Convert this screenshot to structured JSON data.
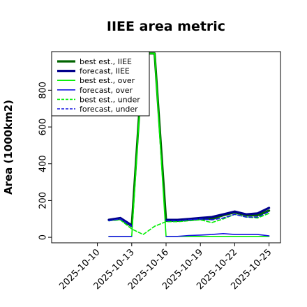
{
  "chart_data": {
    "type": "line",
    "title": "IIEE area metric",
    "xlabel": "",
    "ylabel": "Area (1000km2)",
    "x": [
      "2025-10-11",
      "2025-10-12",
      "2025-10-13",
      "2025-10-14",
      "2025-10-15",
      "2025-10-16",
      "2025-10-17",
      "2025-10-18",
      "2025-10-19",
      "2025-10-20",
      "2025-10-21",
      "2025-10-22",
      "2025-10-23",
      "2025-10-24",
      "2025-10-25"
    ],
    "x_tick_labels": [
      "2025-10-10",
      "2025-10-13",
      "2025-10-16",
      "2025-10-19",
      "2025-10-22",
      "2025-10-25"
    ],
    "x_tick_values": [
      "2025-10-10",
      "2025-10-13",
      "2025-10-16",
      "2025-10-19",
      "2025-10-22",
      "2025-10-25"
    ],
    "highlighted_tick": "2025-10-16",
    "highlight_color": "#2e8b57",
    "xlim": [
      "2025-10-06",
      "2025-10-26"
    ],
    "ylim": [
      -30,
      1010
    ],
    "y_ticks": [
      0,
      200,
      400,
      600,
      800
    ],
    "grid": false,
    "legend_position": "top-left",
    "series": [
      {
        "name": "best est., IIEE",
        "color": "#006400",
        "width": 3.2,
        "dash": "solid",
        "values": [
          95,
          100,
          60,
          1000,
          1000,
          90,
          90,
          95,
          100,
          100,
          120,
          135,
          120,
          120,
          145
        ]
      },
      {
        "name": "forecast, IIEE",
        "color": "#00008b",
        "width": 3.2,
        "dash": "solid",
        "values": [
          95,
          105,
          65,
          null,
          null,
          95,
          95,
          100,
          105,
          110,
          125,
          140,
          125,
          130,
          160
        ]
      },
      {
        "name": "best est., over",
        "color": "#00ee00",
        "width": 1.6,
        "dash": "solid",
        "values": [
          5,
          5,
          5,
          1000,
          1000,
          5,
          5,
          5,
          5,
          5,
          5,
          5,
          5,
          5,
          5
        ]
      },
      {
        "name": "forecast, over",
        "color": "#1515e0",
        "width": 1.6,
        "dash": "solid",
        "values": [
          5,
          5,
          5,
          null,
          null,
          5,
          5,
          10,
          12,
          15,
          20,
          15,
          15,
          15,
          8
        ]
      },
      {
        "name": "best est., under",
        "color": "#00ee00",
        "width": 1.6,
        "dash": "dashed",
        "values": [
          90,
          95,
          45,
          15,
          60,
          85,
          85,
          90,
          95,
          80,
          100,
          125,
          110,
          105,
          130
        ]
      },
      {
        "name": "forecast, under",
        "color": "#1515e0",
        "width": 1.6,
        "dash": "dashed",
        "values": [
          90,
          100,
          60,
          null,
          null,
          90,
          90,
          95,
          100,
          95,
          105,
          125,
          110,
          110,
          140
        ]
      }
    ]
  }
}
